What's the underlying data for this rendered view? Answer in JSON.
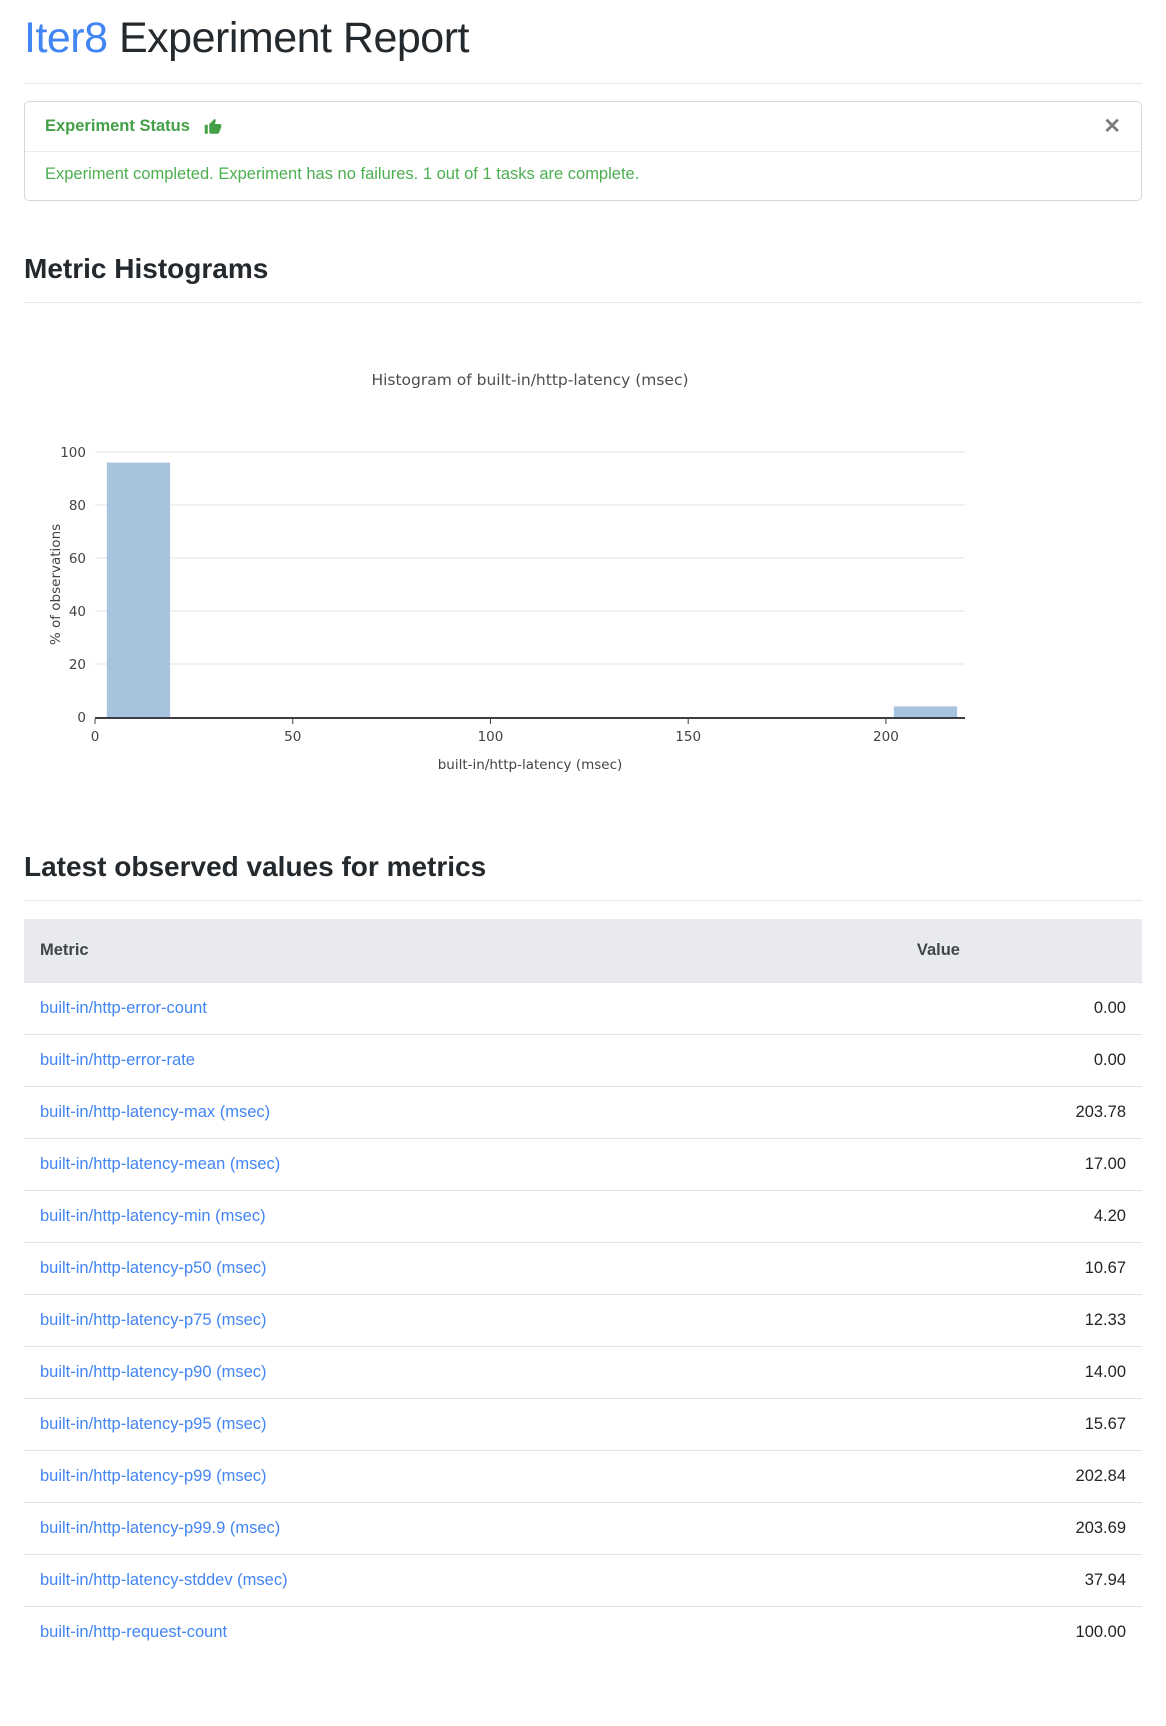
{
  "header": {
    "brand": "Iter8",
    "title_rest": " Experiment Report"
  },
  "status_card": {
    "title": "Experiment Status",
    "icon": "thumbs-up-icon",
    "message": "Experiment completed. Experiment has no failures. 1 out of 1 tasks are complete.",
    "close": "✕"
  },
  "sections": {
    "histograms_heading": "Metric Histograms",
    "latest_values_heading": "Latest observed values for metrics"
  },
  "chart_data": {
    "type": "bar",
    "subtype": "histogram",
    "title": "Histogram of built-in/http-latency (msec)",
    "xlabel": "built-in/http-latency (msec)",
    "ylabel": "% of observations",
    "xlim": [
      0,
      220
    ],
    "ylim": [
      0,
      100
    ],
    "xticks": [
      0,
      50,
      100,
      150,
      200
    ],
    "yticks": [
      0,
      20,
      40,
      60,
      80,
      100
    ],
    "grid": true,
    "legend": "none",
    "bins": [
      {
        "x0": 3,
        "x1": 19,
        "pct": 96
      },
      {
        "x0": 202,
        "x1": 218,
        "pct": 4
      }
    ]
  },
  "metrics_table": {
    "columns": [
      "Metric",
      "Value"
    ],
    "rows": [
      {
        "metric": "built-in/http-error-count",
        "value": "0.00"
      },
      {
        "metric": "built-in/http-error-rate",
        "value": "0.00"
      },
      {
        "metric": "built-in/http-latency-max (msec)",
        "value": "203.78"
      },
      {
        "metric": "built-in/http-latency-mean (msec)",
        "value": "17.00"
      },
      {
        "metric": "built-in/http-latency-min (msec)",
        "value": "4.20"
      },
      {
        "metric": "built-in/http-latency-p50 (msec)",
        "value": "10.67"
      },
      {
        "metric": "built-in/http-latency-p75 (msec)",
        "value": "12.33"
      },
      {
        "metric": "built-in/http-latency-p90 (msec)",
        "value": "14.00"
      },
      {
        "metric": "built-in/http-latency-p95 (msec)",
        "value": "15.67"
      },
      {
        "metric": "built-in/http-latency-p99 (msec)",
        "value": "202.84"
      },
      {
        "metric": "built-in/http-latency-p99.9 (msec)",
        "value": "203.69"
      },
      {
        "metric": "built-in/http-latency-stddev (msec)",
        "value": "37.94"
      },
      {
        "metric": "built-in/http-request-count",
        "value": "100.00"
      }
    ]
  },
  "colors": {
    "brand_blue": "#4285f4",
    "link_blue": "#4285f4",
    "status_green": "#4caf50",
    "status_green_bold": "#43a047",
    "bar_fill": "#a8c3de",
    "gridline": "#eaedf0",
    "axis_line": "#3b3f44",
    "chart_text": "#444444"
  }
}
